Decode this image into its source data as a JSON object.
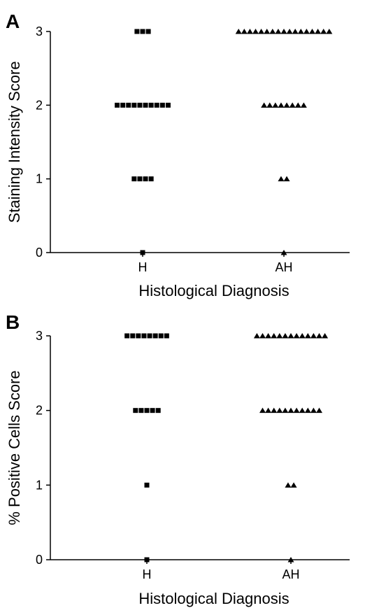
{
  "chart_data": [
    {
      "panel": "A",
      "type": "scatter",
      "ylabel": "Staining Intensity Score",
      "xlabel": "Histological Diagnosis",
      "categories": [
        "H",
        "AH"
      ],
      "ylim": [
        0,
        3
      ],
      "yticks": [
        "0",
        "1",
        "2",
        "3"
      ],
      "series": [
        {
          "category": "H",
          "marker": "square",
          "color": "#000000",
          "counts": {
            "0": 1,
            "1": 4,
            "2": 10,
            "3": 3
          }
        },
        {
          "category": "AH",
          "marker": "triangle",
          "color": "#000000",
          "counts": {
            "0": 1,
            "1": 2,
            "2": 8,
            "3": 17
          }
        }
      ]
    },
    {
      "panel": "B",
      "type": "scatter",
      "ylabel": "% Positive Cells Score",
      "xlabel": "Histological Diagnosis",
      "categories": [
        "H",
        "AH"
      ],
      "ylim": [
        0,
        3
      ],
      "yticks": [
        "0",
        "1",
        "2",
        "3"
      ],
      "series": [
        {
          "category": "H",
          "marker": "square",
          "color": "#000000",
          "counts": {
            "0": 1,
            "1": 1,
            "2": 5,
            "3": 8
          }
        },
        {
          "category": "AH",
          "marker": "triangle",
          "color": "#000000",
          "counts": {
            "0": 1,
            "1": 2,
            "2": 11,
            "3": 13
          }
        }
      ]
    }
  ]
}
